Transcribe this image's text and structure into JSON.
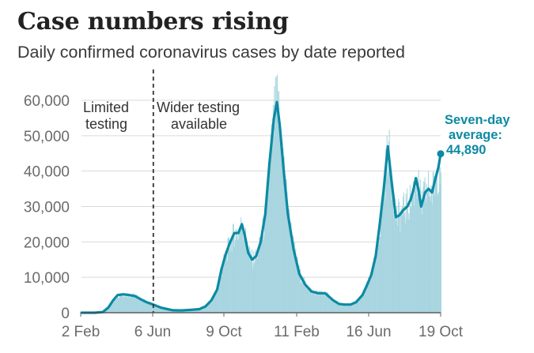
{
  "title": "Case numbers rising",
  "subtitle": "Daily confirmed coronavirus cases by date reported",
  "annotations": {
    "left_line1": "Limited",
    "left_line2": "testing",
    "right_line1": "Wider testing",
    "right_line2": "available",
    "callout_line1": "Seven-day",
    "callout_line2": "average:",
    "callout_value": "44,890"
  },
  "colors": {
    "bars": "#a8d5e0",
    "line": "#0c8aa3",
    "axis": "#6b6b6b"
  },
  "chart_data": {
    "type": "bar",
    "title": "Case numbers rising",
    "subtitle": "Daily confirmed coronavirus cases by date reported",
    "x_axis": {
      "type": "date",
      "ticks": [
        "2 Feb",
        "6 Jun",
        "9 Oct",
        "11 Feb",
        "16 Jun",
        "19 Oct"
      ],
      "range": [
        "2020-02-02",
        "2021-10-19"
      ]
    },
    "y_axis": {
      "ticks": [
        "0",
        "10,000",
        "20,000",
        "30,000",
        "40,000",
        "50,000",
        "60,000"
      ],
      "range": [
        0,
        62000
      ],
      "grid": true
    },
    "divider": {
      "date": "2020-06-06",
      "style": "dashed"
    },
    "series": [
      {
        "name": "Seven-day average",
        "style": "line",
        "points": [
          [
            "2020-02-02",
            0
          ],
          [
            "2020-02-25",
            0
          ],
          [
            "2020-03-10",
            200
          ],
          [
            "2020-03-20",
            1500
          ],
          [
            "2020-03-28",
            3500
          ],
          [
            "2020-04-05",
            5000
          ],
          [
            "2020-04-15",
            5200
          ],
          [
            "2020-04-25",
            5000
          ],
          [
            "2020-05-05",
            4700
          ],
          [
            "2020-05-15",
            3800
          ],
          [
            "2020-05-25",
            3000
          ],
          [
            "2020-06-06",
            2300
          ],
          [
            "2020-06-20",
            1400
          ],
          [
            "2020-07-10",
            700
          ],
          [
            "2020-07-25",
            650
          ],
          [
            "2020-08-10",
            800
          ],
          [
            "2020-08-25",
            1000
          ],
          [
            "2020-09-05",
            1800
          ],
          [
            "2020-09-15",
            3500
          ],
          [
            "2020-09-25",
            6500
          ],
          [
            "2020-10-03",
            12500
          ],
          [
            "2020-10-10",
            16500
          ],
          [
            "2020-10-18",
            20000
          ],
          [
            "2020-10-25",
            22500
          ],
          [
            "2020-11-01",
            22500
          ],
          [
            "2020-11-07",
            25000
          ],
          [
            "2020-11-12",
            22000
          ],
          [
            "2020-11-18",
            17000
          ],
          [
            "2020-11-25",
            15000
          ],
          [
            "2020-12-02",
            16000
          ],
          [
            "2020-12-10",
            20000
          ],
          [
            "2020-12-18",
            28000
          ],
          [
            "2020-12-25",
            42000
          ],
          [
            "2021-01-02",
            55000
          ],
          [
            "2021-01-07",
            59500
          ],
          [
            "2021-01-12",
            53000
          ],
          [
            "2021-01-19",
            40000
          ],
          [
            "2021-01-26",
            28000
          ],
          [
            "2021-02-05",
            18000
          ],
          [
            "2021-02-15",
            11000
          ],
          [
            "2021-02-25",
            8000
          ],
          [
            "2021-03-08",
            6000
          ],
          [
            "2021-03-20",
            5500
          ],
          [
            "2021-04-01",
            5500
          ],
          [
            "2021-04-15",
            3500
          ],
          [
            "2021-04-25",
            2500
          ],
          [
            "2021-05-05",
            2300
          ],
          [
            "2021-05-15",
            2300
          ],
          [
            "2021-05-25",
            3000
          ],
          [
            "2021-06-05",
            5000
          ],
          [
            "2021-06-12",
            7500
          ],
          [
            "2021-06-20",
            10500
          ],
          [
            "2021-06-28",
            16000
          ],
          [
            "2021-07-05",
            25000
          ],
          [
            "2021-07-12",
            35000
          ],
          [
            "2021-07-19",
            47000
          ],
          [
            "2021-07-25",
            38000
          ],
          [
            "2021-08-02",
            27000
          ],
          [
            "2021-08-08",
            27500
          ],
          [
            "2021-08-15",
            29000
          ],
          [
            "2021-08-22",
            30000
          ],
          [
            "2021-08-28",
            32000
          ],
          [
            "2021-09-02",
            35000
          ],
          [
            "2021-09-06",
            38000
          ],
          [
            "2021-09-10",
            35000
          ],
          [
            "2021-09-15",
            30000
          ],
          [
            "2021-09-22",
            34000
          ],
          [
            "2021-09-28",
            35000
          ],
          [
            "2021-10-04",
            34000
          ],
          [
            "2021-10-10",
            38000
          ],
          [
            "2021-10-15",
            41000
          ],
          [
            "2021-10-19",
            44890
          ]
        ]
      }
    ],
    "legend": "none",
    "callout": {
      "text": "Seven-day average: 44,890",
      "value": 44890,
      "date": "2021-10-19"
    }
  }
}
